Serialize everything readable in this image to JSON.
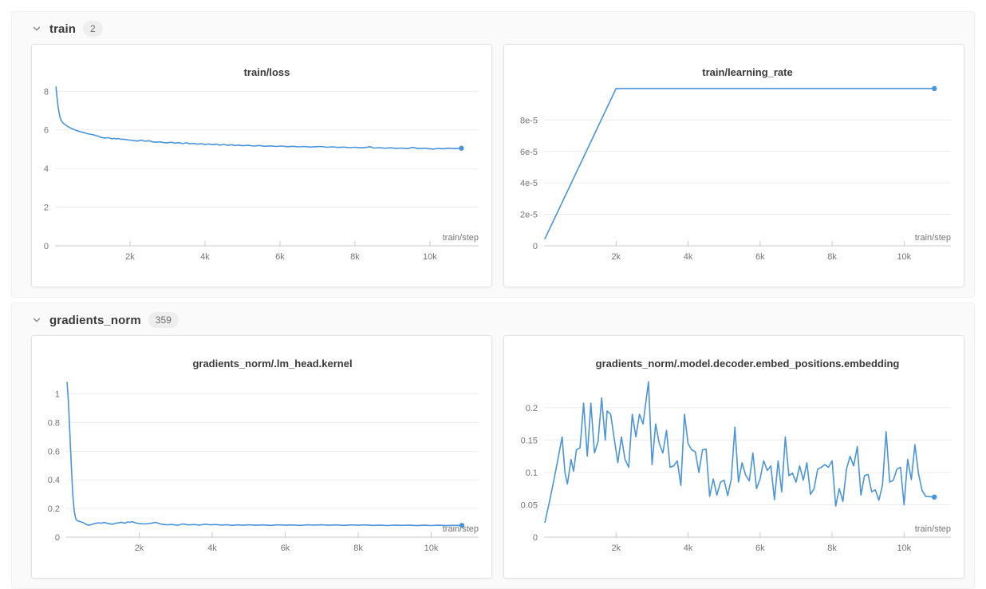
{
  "accent_color": "#4a94d9",
  "colors": {
    "panel_bg": "#fafafa",
    "card_bg": "#ffffff",
    "grid_line": "#ececec",
    "axis_line": "#d6d6d6",
    "tick_mark": "#c9c9c9",
    "tick_text": "#757575",
    "title_text": "#3a3a3a"
  },
  "sections": [
    {
      "name": "train",
      "count": "2"
    },
    {
      "name": "gradients_norm",
      "count": "359"
    }
  ],
  "chart_data": [
    {
      "type": "line",
      "title": "train/loss",
      "xlabel": "train/step",
      "ylabel": "",
      "legend": "none",
      "grid": "horizontal",
      "line_color": "#4a94d9",
      "xlim": [
        0,
        11300
      ],
      "ylim": [
        0,
        8.3
      ],
      "xticks": [
        2000,
        4000,
        6000,
        8000,
        10000
      ],
      "xtick_labels": [
        "2k",
        "4k",
        "6k",
        "8k",
        "10k"
      ],
      "yticks": [
        0,
        2,
        4,
        6,
        8
      ],
      "ytick_labels": [
        "0",
        "2",
        "4",
        "6",
        "8"
      ],
      "points": [
        [
          25,
          8.22
        ],
        [
          50,
          7.75
        ],
        [
          80,
          7.2
        ],
        [
          110,
          6.85
        ],
        [
          140,
          6.6
        ],
        [
          170,
          6.47
        ],
        [
          210,
          6.36
        ],
        [
          260,
          6.28
        ],
        [
          320,
          6.2
        ],
        [
          380,
          6.13
        ],
        [
          440,
          6.07
        ],
        [
          500,
          6.02
        ],
        [
          560,
          5.97
        ],
        [
          620,
          5.94
        ],
        [
          680,
          5.9
        ],
        [
          740,
          5.87
        ],
        [
          800,
          5.84
        ],
        [
          860,
          5.8
        ],
        [
          920,
          5.78
        ],
        [
          980,
          5.76
        ],
        [
          1040,
          5.73
        ],
        [
          1100,
          5.7
        ],
        [
          1160,
          5.67
        ],
        [
          1220,
          5.61
        ],
        [
          1280,
          5.59
        ],
        [
          1340,
          5.57
        ],
        [
          1400,
          5.6
        ],
        [
          1460,
          5.57
        ],
        [
          1520,
          5.54
        ],
        [
          1580,
          5.56
        ],
        [
          1640,
          5.53
        ],
        [
          1700,
          5.55
        ],
        [
          1760,
          5.51
        ],
        [
          1820,
          5.52
        ],
        [
          1880,
          5.5
        ],
        [
          1940,
          5.48
        ],
        [
          2000,
          5.47
        ],
        [
          2100,
          5.44
        ],
        [
          2200,
          5.42
        ],
        [
          2300,
          5.47
        ],
        [
          2400,
          5.41
        ],
        [
          2500,
          5.44
        ],
        [
          2600,
          5.38
        ],
        [
          2700,
          5.36
        ],
        [
          2800,
          5.38
        ],
        [
          2900,
          5.34
        ],
        [
          3000,
          5.33
        ],
        [
          3100,
          5.36
        ],
        [
          3200,
          5.31
        ],
        [
          3300,
          5.34
        ],
        [
          3400,
          5.29
        ],
        [
          3500,
          5.33
        ],
        [
          3600,
          5.28
        ],
        [
          3700,
          5.3
        ],
        [
          3800,
          5.26
        ],
        [
          3900,
          5.28
        ],
        [
          4000,
          5.25
        ],
        [
          4100,
          5.27
        ],
        [
          4200,
          5.23
        ],
        [
          4300,
          5.26
        ],
        [
          4400,
          5.21
        ],
        [
          4500,
          5.25
        ],
        [
          4600,
          5.2
        ],
        [
          4700,
          5.23
        ],
        [
          4800,
          5.19
        ],
        [
          4900,
          5.21
        ],
        [
          5000,
          5.18
        ],
        [
          5150,
          5.2
        ],
        [
          5300,
          5.16
        ],
        [
          5450,
          5.19
        ],
        [
          5600,
          5.15
        ],
        [
          5750,
          5.17
        ],
        [
          5900,
          5.14
        ],
        [
          6050,
          5.16
        ],
        [
          6200,
          5.13
        ],
        [
          6350,
          5.15
        ],
        [
          6500,
          5.12
        ],
        [
          6650,
          5.14
        ],
        [
          6800,
          5.11
        ],
        [
          6950,
          5.13
        ],
        [
          7100,
          5.14
        ],
        [
          7250,
          5.1
        ],
        [
          7400,
          5.12
        ],
        [
          7550,
          5.09
        ],
        [
          7700,
          5.11
        ],
        [
          7850,
          5.08
        ],
        [
          8000,
          5.1
        ],
        [
          8150,
          5.07
        ],
        [
          8300,
          5.09
        ],
        [
          8400,
          5.13
        ],
        [
          8500,
          5.06
        ],
        [
          8650,
          5.08
        ],
        [
          8800,
          5.05
        ],
        [
          8950,
          5.07
        ],
        [
          9100,
          5.04
        ],
        [
          9250,
          5.06
        ],
        [
          9400,
          5.03
        ],
        [
          9550,
          5.09
        ],
        [
          9700,
          5.03
        ],
        [
          9850,
          5.05
        ],
        [
          10000,
          5.02
        ],
        [
          10100,
          5.0
        ],
        [
          10200,
          5.04
        ],
        [
          10350,
          5.02
        ],
        [
          10500,
          5.05
        ],
        [
          10650,
          5.03
        ],
        [
          10840,
          5.05
        ]
      ]
    },
    {
      "type": "line",
      "title": "train/learning_rate",
      "xlabel": "train/step",
      "ylabel": "",
      "legend": "none",
      "grid": "horizontal",
      "line_color": "#4a94d9",
      "xlim": [
        0,
        11300
      ],
      "ylim": [
        0,
        0.000102
      ],
      "xticks": [
        2000,
        4000,
        6000,
        8000,
        10000
      ],
      "xtick_labels": [
        "2k",
        "4k",
        "6k",
        "8k",
        "10k"
      ],
      "yticks": [
        0,
        2e-05,
        4e-05,
        6e-05,
        8e-05
      ],
      "ytick_labels": [
        "0",
        "2e-5",
        "4e-5",
        "6e-5",
        "8e-5"
      ],
      "points": [
        [
          25,
          4.5e-06
        ],
        [
          2000,
          0.0001
        ],
        [
          10840,
          0.0001
        ]
      ]
    },
    {
      "type": "line",
      "title": "gradients_norm/.lm_head.kernel",
      "xlabel": "train/step",
      "ylabel": "",
      "legend": "none",
      "grid": "horizontal",
      "line_color": "#4a94d9",
      "xlim": [
        0,
        11300
      ],
      "ylim": [
        0,
        1.12
      ],
      "xticks": [
        2000,
        4000,
        6000,
        8000,
        10000
      ],
      "xtick_labels": [
        "2k",
        "4k",
        "6k",
        "8k",
        "10k"
      ],
      "yticks": [
        0,
        0.2,
        0.4,
        0.6,
        0.8,
        1
      ],
      "ytick_labels": [
        "0",
        "0.2",
        "0.4",
        "0.6",
        "0.8",
        "1"
      ],
      "points": [
        [
          25,
          1.08
        ],
        [
          60,
          0.95
        ],
        [
          100,
          0.72
        ],
        [
          140,
          0.5
        ],
        [
          180,
          0.3
        ],
        [
          220,
          0.18
        ],
        [
          260,
          0.13
        ],
        [
          300,
          0.115
        ],
        [
          360,
          0.11
        ],
        [
          420,
          0.105
        ],
        [
          480,
          0.1
        ],
        [
          540,
          0.09
        ],
        [
          600,
          0.083
        ],
        [
          660,
          0.085
        ],
        [
          720,
          0.09
        ],
        [
          780,
          0.095
        ],
        [
          840,
          0.098
        ],
        [
          900,
          0.1
        ],
        [
          960,
          0.097
        ],
        [
          1020,
          0.102
        ],
        [
          1080,
          0.1
        ],
        [
          1140,
          0.096
        ],
        [
          1200,
          0.093
        ],
        [
          1260,
          0.09
        ],
        [
          1320,
          0.095
        ],
        [
          1380,
          0.098
        ],
        [
          1440,
          0.1
        ],
        [
          1500,
          0.104
        ],
        [
          1560,
          0.1
        ],
        [
          1620,
          0.098
        ],
        [
          1680,
          0.106
        ],
        [
          1740,
          0.103
        ],
        [
          1800,
          0.108
        ],
        [
          1900,
          0.1
        ],
        [
          2000,
          0.094
        ],
        [
          2150,
          0.092
        ],
        [
          2300,
          0.096
        ],
        [
          2450,
          0.103
        ],
        [
          2600,
          0.09
        ],
        [
          2750,
          0.086
        ],
        [
          2900,
          0.088
        ],
        [
          3050,
          0.083
        ],
        [
          3200,
          0.092
        ],
        [
          3350,
          0.085
        ],
        [
          3500,
          0.088
        ],
        [
          3650,
          0.084
        ],
        [
          3800,
          0.09
        ],
        [
          3950,
          0.086
        ],
        [
          4100,
          0.088
        ],
        [
          4250,
          0.084
        ],
        [
          4400,
          0.087
        ],
        [
          4550,
          0.082
        ],
        [
          4700,
          0.086
        ],
        [
          4850,
          0.083
        ],
        [
          5000,
          0.086
        ],
        [
          5200,
          0.083
        ],
        [
          5400,
          0.085
        ],
        [
          5600,
          0.082
        ],
        [
          5800,
          0.086
        ],
        [
          6000,
          0.083
        ],
        [
          6200,
          0.085
        ],
        [
          6400,
          0.082
        ],
        [
          6600,
          0.086
        ],
        [
          6800,
          0.084
        ],
        [
          7000,
          0.086
        ],
        [
          7200,
          0.083
        ],
        [
          7400,
          0.085
        ],
        [
          7600,
          0.082
        ],
        [
          7800,
          0.085
        ],
        [
          8000,
          0.083
        ],
        [
          8200,
          0.085
        ],
        [
          8400,
          0.082
        ],
        [
          8600,
          0.084
        ],
        [
          8800,
          0.081
        ],
        [
          9000,
          0.084
        ],
        [
          9200,
          0.082
        ],
        [
          9400,
          0.084
        ],
        [
          9600,
          0.08
        ],
        [
          9800,
          0.083
        ],
        [
          10000,
          0.081
        ],
        [
          10200,
          0.083
        ],
        [
          10400,
          0.08
        ],
        [
          10600,
          0.082
        ],
        [
          10840,
          0.082
        ]
      ]
    },
    {
      "type": "line",
      "title": "gradients_norm/.model.decoder.embed_positions.embedding",
      "xlabel": "train/step",
      "ylabel": "",
      "legend": "none",
      "grid": "horizontal",
      "line_color": "#4a94d9",
      "xlim": [
        0,
        11300
      ],
      "ylim": [
        0,
        0.248
      ],
      "xticks": [
        2000,
        4000,
        6000,
        8000,
        10000
      ],
      "xtick_labels": [
        "2k",
        "4k",
        "6k",
        "8k",
        "10k"
      ],
      "yticks": [
        0,
        0.05,
        0.1,
        0.15,
        0.2
      ],
      "ytick_labels": [
        "0",
        "0.05",
        "0.1",
        "0.15",
        "0.2"
      ],
      "points": [
        [
          25,
          0.023
        ],
        [
          150,
          0.055
        ],
        [
          280,
          0.09
        ],
        [
          400,
          0.125
        ],
        [
          500,
          0.155
        ],
        [
          580,
          0.1
        ],
        [
          650,
          0.082
        ],
        [
          750,
          0.12
        ],
        [
          820,
          0.102
        ],
        [
          900,
          0.135
        ],
        [
          1000,
          0.138
        ],
        [
          1100,
          0.207
        ],
        [
          1200,
          0.125
        ],
        [
          1300,
          0.207
        ],
        [
          1400,
          0.13
        ],
        [
          1500,
          0.148
        ],
        [
          1600,
          0.215
        ],
        [
          1700,
          0.15
        ],
        [
          1750,
          0.195
        ],
        [
          1850,
          0.19
        ],
        [
          1950,
          0.152
        ],
        [
          2050,
          0.115
        ],
        [
          2150,
          0.155
        ],
        [
          2250,
          0.12
        ],
        [
          2350,
          0.108
        ],
        [
          2450,
          0.19
        ],
        [
          2550,
          0.155
        ],
        [
          2650,
          0.19
        ],
        [
          2750,
          0.175
        ],
        [
          2900,
          0.24
        ],
        [
          3000,
          0.112
        ],
        [
          3100,
          0.175
        ],
        [
          3200,
          0.145
        ],
        [
          3300,
          0.13
        ],
        [
          3400,
          0.165
        ],
        [
          3500,
          0.108
        ],
        [
          3600,
          0.11
        ],
        [
          3700,
          0.118
        ],
        [
          3800,
          0.08
        ],
        [
          3900,
          0.19
        ],
        [
          4000,
          0.145
        ],
        [
          4100,
          0.135
        ],
        [
          4200,
          0.132
        ],
        [
          4300,
          0.1
        ],
        [
          4400,
          0.135
        ],
        [
          4500,
          0.136
        ],
        [
          4600,
          0.063
        ],
        [
          4700,
          0.09
        ],
        [
          4800,
          0.065
        ],
        [
          4900,
          0.085
        ],
        [
          5000,
          0.088
        ],
        [
          5100,
          0.064
        ],
        [
          5200,
          0.09
        ],
        [
          5300,
          0.17
        ],
        [
          5400,
          0.085
        ],
        [
          5500,
          0.115
        ],
        [
          5600,
          0.096
        ],
        [
          5700,
          0.087
        ],
        [
          5800,
          0.13
        ],
        [
          5900,
          0.075
        ],
        [
          6000,
          0.09
        ],
        [
          6100,
          0.118
        ],
        [
          6200,
          0.103
        ],
        [
          6300,
          0.11
        ],
        [
          6400,
          0.058
        ],
        [
          6500,
          0.118
        ],
        [
          6600,
          0.07
        ],
        [
          6700,
          0.155
        ],
        [
          6800,
          0.095
        ],
        [
          6900,
          0.099
        ],
        [
          7000,
          0.085
        ],
        [
          7100,
          0.11
        ],
        [
          7200,
          0.088
        ],
        [
          7300,
          0.115
        ],
        [
          7400,
          0.066
        ],
        [
          7500,
          0.075
        ],
        [
          7600,
          0.105
        ],
        [
          7700,
          0.108
        ],
        [
          7800,
          0.112
        ],
        [
          7900,
          0.108
        ],
        [
          8000,
          0.118
        ],
        [
          8100,
          0.048
        ],
        [
          8200,
          0.075
        ],
        [
          8300,
          0.055
        ],
        [
          8400,
          0.105
        ],
        [
          8500,
          0.125
        ],
        [
          8600,
          0.11
        ],
        [
          8700,
          0.14
        ],
        [
          8800,
          0.065
        ],
        [
          8900,
          0.095
        ],
        [
          9000,
          0.097
        ],
        [
          9100,
          0.07
        ],
        [
          9200,
          0.073
        ],
        [
          9300,
          0.057
        ],
        [
          9400,
          0.08
        ],
        [
          9500,
          0.163
        ],
        [
          9600,
          0.085
        ],
        [
          9700,
          0.088
        ],
        [
          9800,
          0.105
        ],
        [
          9900,
          0.108
        ],
        [
          10000,
          0.05
        ],
        [
          10100,
          0.12
        ],
        [
          10200,
          0.089
        ],
        [
          10300,
          0.143
        ],
        [
          10400,
          0.098
        ],
        [
          10500,
          0.072
        ],
        [
          10600,
          0.063
        ],
        [
          10840,
          0.062
        ]
      ]
    }
  ]
}
